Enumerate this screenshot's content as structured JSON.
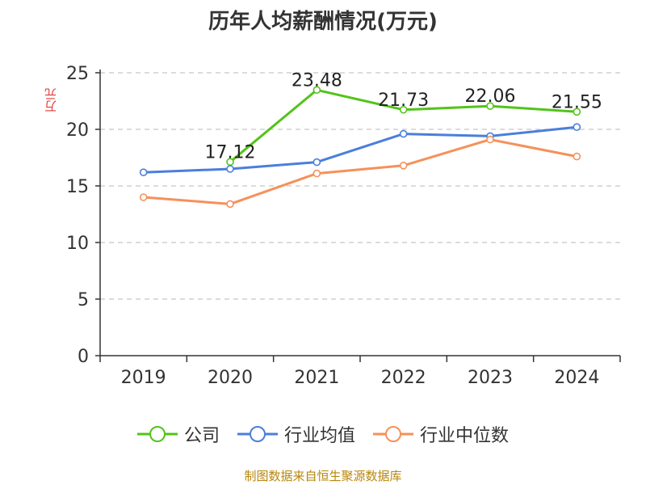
{
  "chart_data": {
    "type": "line",
    "title": "历年人均薪酬情况(万元)",
    "ylabel": "万元",
    "xlabel": "",
    "ylim": [
      0,
      25
    ],
    "yticks": [
      0,
      5,
      10,
      15,
      20,
      25
    ],
    "categories": [
      "2019",
      "2020",
      "2021",
      "2022",
      "2023",
      "2024"
    ],
    "grid": true,
    "legend_position": "bottom",
    "series": [
      {
        "name": "公司",
        "color": "#52c41a",
        "values": [
          null,
          17.12,
          23.48,
          21.73,
          22.06,
          21.55
        ],
        "labels": [
          null,
          "17.12",
          "23.48",
          "21.73",
          "22.06",
          "21.55"
        ]
      },
      {
        "name": "行业均值",
        "color": "#4a7fdb",
        "values": [
          16.2,
          16.5,
          17.1,
          19.6,
          19.4,
          20.2
        ]
      },
      {
        "name": "行业中位数",
        "color": "#f5915a",
        "values": [
          14.0,
          13.4,
          16.1,
          16.8,
          19.1,
          17.6
        ]
      }
    ]
  },
  "source_text": "制图数据来自恒生聚源数据库"
}
